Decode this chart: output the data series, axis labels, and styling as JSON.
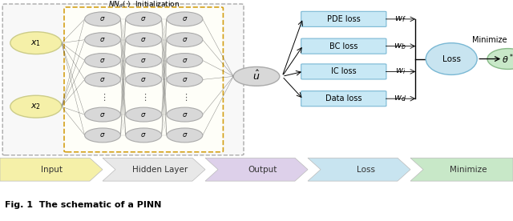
{
  "fig_width": 6.4,
  "fig_height": 2.76,
  "dpi": 100,
  "legend_labels": [
    "Input",
    "Hidden Layer",
    "Output",
    "Loss",
    "Minimize"
  ],
  "legend_colors": [
    "#f5f0a8",
    "#e8e8e8",
    "#ddd0ea",
    "#c8e4f0",
    "#c8e8c8"
  ],
  "caption": "Fig. 1  The schematic of a PINN",
  "caption_fontsize": 8,
  "legend_fontsize": 7.5,
  "input_labels": [
    "$x_1$",
    "$x_2$"
  ],
  "input_color": "#f5f0a8",
  "input_ec": "#cccc88",
  "node_color": "#d8d8d8",
  "node_ec": "#aaaaaa",
  "loss_box_color": "#c8e8f5",
  "loss_box_ec": "#7ab8d4",
  "loss_ellipse_color": "#c8e4f0",
  "loss_ellipse_ec": "#7ab8d4",
  "theta_color": "#c8e8c8",
  "theta_ec": "#88bb88",
  "gray_box_ec": "#aaaaaa",
  "yellow_box_ec": "#d4a017",
  "loss_labels": [
    "PDE loss",
    "BC loss",
    "IC loss",
    "Data loss"
  ],
  "w_labels": [
    "$w_f$",
    "$w_b$",
    "$w_i$",
    "$w_d$"
  ]
}
